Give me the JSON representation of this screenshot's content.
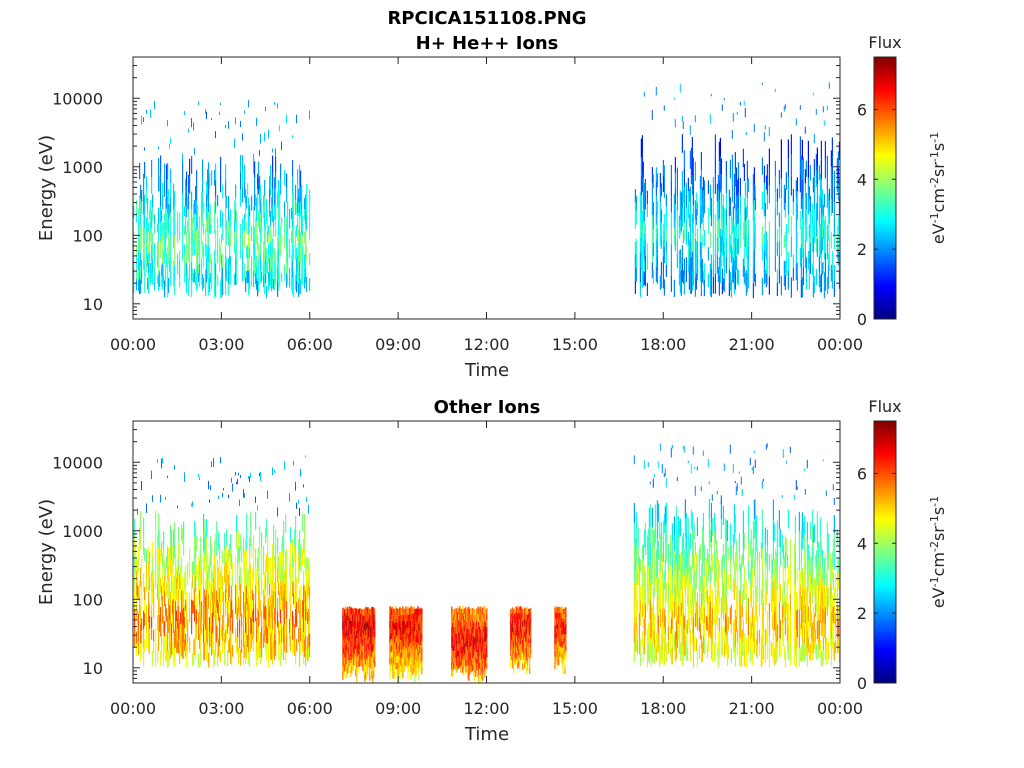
{
  "figure": {
    "title": "RPCICA151108.PNG"
  },
  "chart_data": [
    {
      "type": "heatmap",
      "title": "H+ He++ Ions",
      "xlabel": "Time",
      "ylabel": "Energy (eV)",
      "x_ticks": [
        "00:00",
        "03:00",
        "06:00",
        "09:00",
        "12:00",
        "15:00",
        "18:00",
        "21:00",
        "00:00"
      ],
      "xlim_hours": [
        0,
        24
      ],
      "y_scale": "log",
      "ylim": [
        6,
        40000
      ],
      "y_ticks": [
        10,
        100,
        1000,
        10000
      ],
      "y_tick_labels": [
        "10",
        "100",
        "1000",
        "10000"
      ],
      "colorbar": {
        "title": "Flux",
        "label": "eV-1cm-2sr-1s-1",
        "range": [
          0,
          7.5
        ],
        "ticks": [
          "0",
          "2",
          "4",
          "6"
        ],
        "colormap": "jet"
      },
      "regions": [
        {
          "start_h": 0.0,
          "end_h": 6.0,
          "e_min": 12,
          "e_max": 1500,
          "peak_e": 80,
          "peak_flux": 3.6,
          "density": 0.75
        },
        {
          "start_h": 17.0,
          "end_h": 24.0,
          "e_min": 12,
          "e_max": 3000,
          "peak_e": 100,
          "peak_flux": 3.1,
          "density": 0.6
        }
      ]
    },
    {
      "type": "heatmap",
      "title": "Other Ions",
      "xlabel": "Time",
      "ylabel": "Energy (eV)",
      "x_ticks": [
        "00:00",
        "03:00",
        "06:00",
        "09:00",
        "12:00",
        "15:00",
        "18:00",
        "21:00",
        "00:00"
      ],
      "xlim_hours": [
        0,
        24
      ],
      "y_scale": "log",
      "ylim": [
        6,
        40000
      ],
      "y_ticks": [
        10,
        100,
        1000,
        10000
      ],
      "y_tick_labels": [
        "10",
        "100",
        "1000",
        "10000"
      ],
      "colorbar": {
        "title": "Flux",
        "label": "eV-1cm-2sr-1s-1",
        "range": [
          0,
          7.5
        ],
        "ticks": [
          "0",
          "2",
          "4",
          "6"
        ],
        "colormap": "jet"
      },
      "regions": [
        {
          "start_h": 0.0,
          "end_h": 6.0,
          "e_min": 10,
          "e_max": 2000,
          "peak_e": 50,
          "peak_flux": 5.6,
          "density": 0.85
        },
        {
          "start_h": 7.1,
          "end_h": 8.2,
          "e_min": 6,
          "e_max": 80,
          "peak_e": 40,
          "peak_flux": 6.8,
          "density": 1.0
        },
        {
          "start_h": 8.7,
          "end_h": 9.8,
          "e_min": 6,
          "e_max": 80,
          "peak_e": 40,
          "peak_flux": 6.5,
          "density": 1.0
        },
        {
          "start_h": 10.8,
          "end_h": 12.0,
          "e_min": 6,
          "e_max": 80,
          "peak_e": 25,
          "peak_flux": 6.6,
          "density": 1.0
        },
        {
          "start_h": 12.8,
          "end_h": 13.5,
          "e_min": 8,
          "e_max": 80,
          "peak_e": 40,
          "peak_flux": 6.5,
          "density": 1.0
        },
        {
          "start_h": 14.3,
          "end_h": 14.7,
          "e_min": 8,
          "e_max": 80,
          "peak_e": 40,
          "peak_flux": 6.4,
          "density": 1.0
        },
        {
          "start_h": 17.0,
          "end_h": 24.0,
          "e_min": 10,
          "e_max": 3000,
          "peak_e": 45,
          "peak_flux": 5.2,
          "density": 0.85
        }
      ]
    }
  ]
}
